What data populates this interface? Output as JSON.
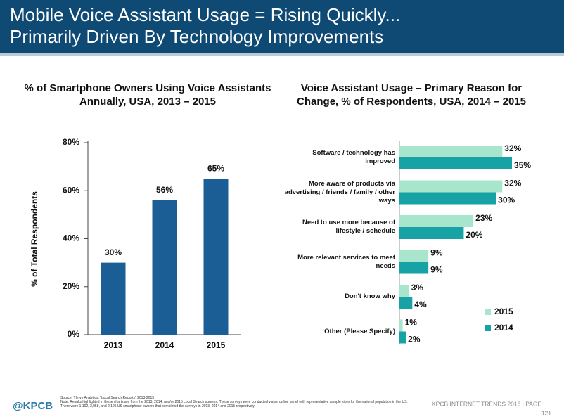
{
  "header": {
    "title_lines": [
      "Mobile Voice Assistant Usage = Rising Quickly...",
      "Primarily Driven By Technology Improvements"
    ]
  },
  "chart_data": [
    {
      "type": "bar",
      "title_lines": [
        "% of Smartphone Owners Using Voice Assistants",
        "Annually, USA, 2013 – 2015"
      ],
      "ylabel": "% of Total Respondents",
      "categories": [
        "2013",
        "2014",
        "2015"
      ],
      "values": [
        30,
        56,
        65
      ],
      "value_labels": [
        "30%",
        "56%",
        "65%"
      ],
      "color": "#1b5d95",
      "ylim": [
        0,
        80
      ],
      "yticks": [
        {
          "value": 0,
          "label": "0%"
        },
        {
          "value": 20,
          "label": "20%"
        },
        {
          "value": 40,
          "label": "40%"
        },
        {
          "value": 60,
          "label": "60%"
        },
        {
          "value": 80,
          "label": "80%"
        }
      ],
      "grid": false
    },
    {
      "type": "hbar",
      "title_lines": [
        "Voice Assistant Usage – Primary Reason for",
        "Change, % of Respondents, USA, 2014 – 2015"
      ],
      "categories": [
        "Software / technology has improved",
        "More aware of products via advertising / friends / family / other ways",
        "Need to use more because of lifestyle / schedule",
        "More relevant services to meet needs",
        "Don't know why",
        "Other (Please Specify)"
      ],
      "series": [
        {
          "name": "2015",
          "color": "#a7e6cc",
          "values": [
            32,
            32,
            23,
            9,
            3,
            1
          ],
          "value_labels": [
            "32%",
            "32%",
            "23%",
            "9%",
            "3%",
            "1%"
          ]
        },
        {
          "name": "2014",
          "color": "#17a2a6",
          "values": [
            35,
            30,
            20,
            9,
            4,
            2
          ],
          "value_labels": [
            "35%",
            "30%",
            "20%",
            "9%",
            "4%",
            "2%"
          ]
        }
      ],
      "legend": "lower right"
    }
  ],
  "footer": {
    "logo": "@KPCB",
    "source": "Source: Thrive Analytics, “Local Search Reports” 2013-2015",
    "note": "Note: Results highlighted in these charts are from the 2013, 2014, and/or 2015 Local Search surveys. These surveys were conducted via an online panel with representative sample sizes for the national population in the US. There were 1,102, 2,058, and 2,125 US smartphone owners that completed the surveys in 2013, 2014 and 2015 respectively.",
    "right": "KPCB INTERNET TRENDS 2016  |  PAGE",
    "page": "121"
  }
}
